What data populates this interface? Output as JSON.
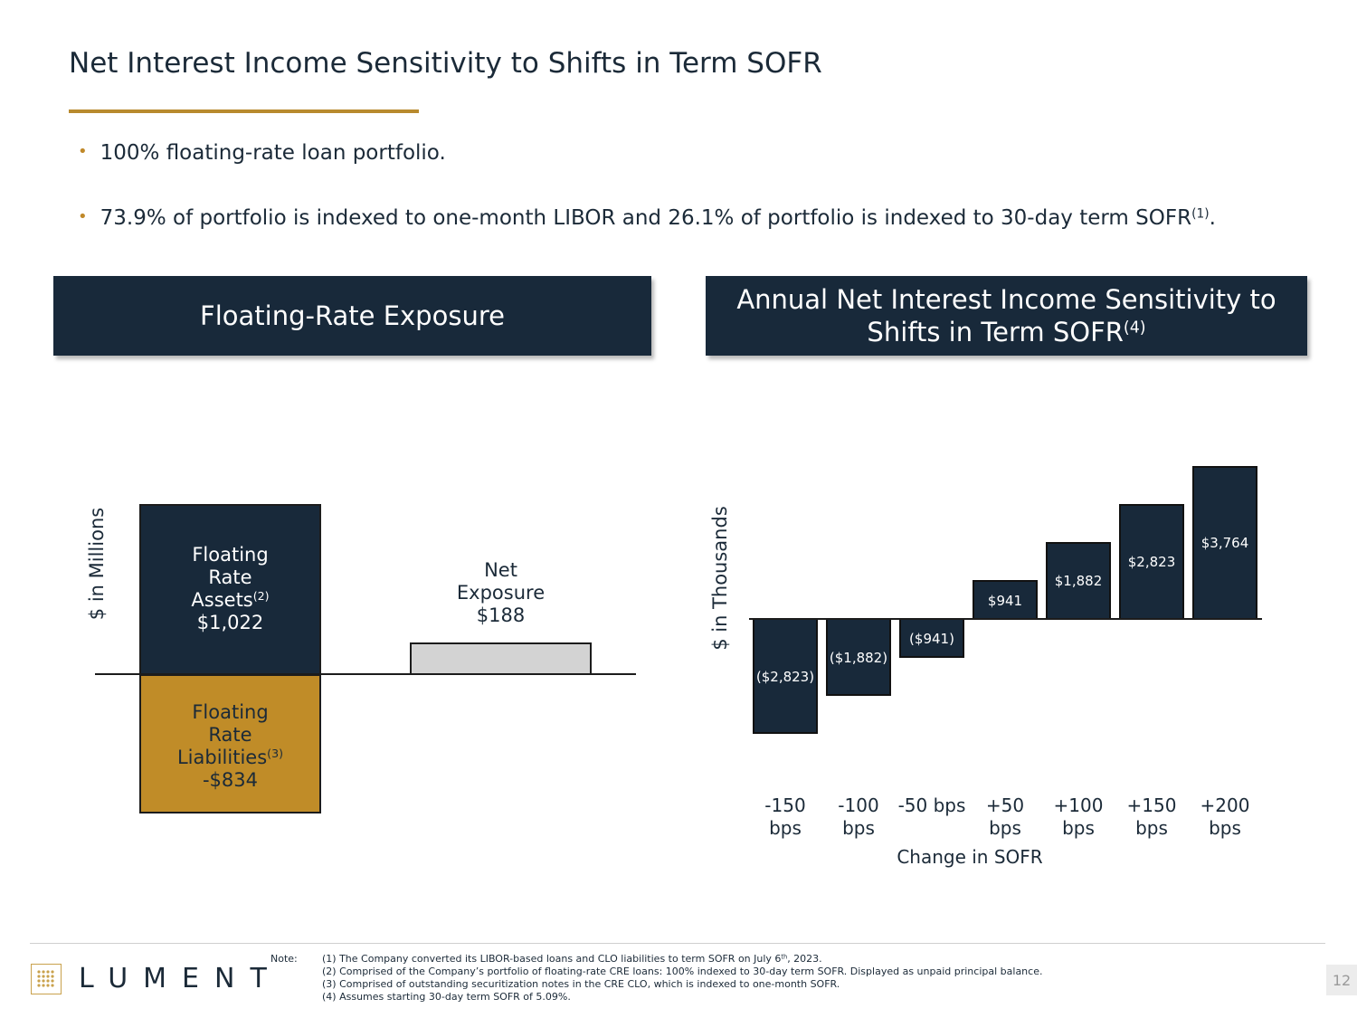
{
  "title": "Net Interest Income Sensitivity to Shifts in Term SOFR",
  "bullets": [
    "100% floating-rate loan portfolio.",
    "73.9% of portfolio is indexed to one-month LIBOR and 26.1% of portfolio is indexed to 30-day term SOFR",
    "(1)",
    "."
  ],
  "left_panel": {
    "header": "Floating-Rate Exposure",
    "ylabel": "$ in Millions",
    "assets": {
      "lines": [
        "Floating",
        "Rate",
        "Assets"
      ],
      "sup": "(2)",
      "value": "$1,022"
    },
    "liabilities": {
      "lines": [
        "Floating",
        "Rate",
        "Liabilities"
      ],
      "sup": "(3)",
      "value": "-$834"
    },
    "net": {
      "lines": [
        "Net",
        "Exposure"
      ],
      "value": "$188"
    }
  },
  "right_panel": {
    "header_line1": "Annual Net Interest Income Sensitivity to",
    "header_line2": "Shifts in Term SOFR",
    "header_sup": "(4)"
  },
  "chart_data": [
    {
      "type": "bar",
      "categories": [
        "Floating Rate Assets",
        "Floating Rate Liabilities",
        "Net Exposure"
      ],
      "values": [
        1022,
        -834,
        188
      ],
      "ylabel": "$ in Millions",
      "colors": [
        "#18293a",
        "#c08c28",
        "#d3d3d3"
      ]
    },
    {
      "type": "bar",
      "categories": [
        [
          "-150",
          "bps"
        ],
        [
          "-100",
          "bps"
        ],
        [
          "-50 bps"
        ],
        [
          "+50",
          "bps"
        ],
        [
          "+100",
          "bps"
        ],
        [
          "+150",
          "bps"
        ],
        [
          "+200",
          "bps"
        ]
      ],
      "values": [
        -2823,
        -1882,
        -941,
        941,
        1882,
        2823,
        3764
      ],
      "data_labels": [
        "($2,823)",
        "($1,882)",
        "($941)",
        "$941",
        "$1,882",
        "$2,823",
        "$3,764"
      ],
      "xlabel": "Change in SOFR",
      "ylabel": "$ in Thousands",
      "bar_color": "#18293a",
      "grid": false
    }
  ],
  "footer": {
    "logo": "LUMENT",
    "note_label": "Note:",
    "notes": [
      [
        "(1) The Company converted its LIBOR-based loans and CLO liabilities to term SOFR on July 6",
        "th",
        ", 2023."
      ],
      [
        "(2) Comprised of the Company’s portfolio of floating-rate CRE loans: 100% indexed to 30-day term SOFR. Displayed as unpaid principal balance.",
        "",
        ""
      ],
      [
        "(3) Comprised of outstanding securitization notes in the CRE CLO, which is indexed to one-month SOFR.",
        "",
        ""
      ],
      [
        "(4) Assumes starting 30-day term SOFR of 5.09%.",
        "",
        ""
      ]
    ],
    "page_number": "12"
  }
}
